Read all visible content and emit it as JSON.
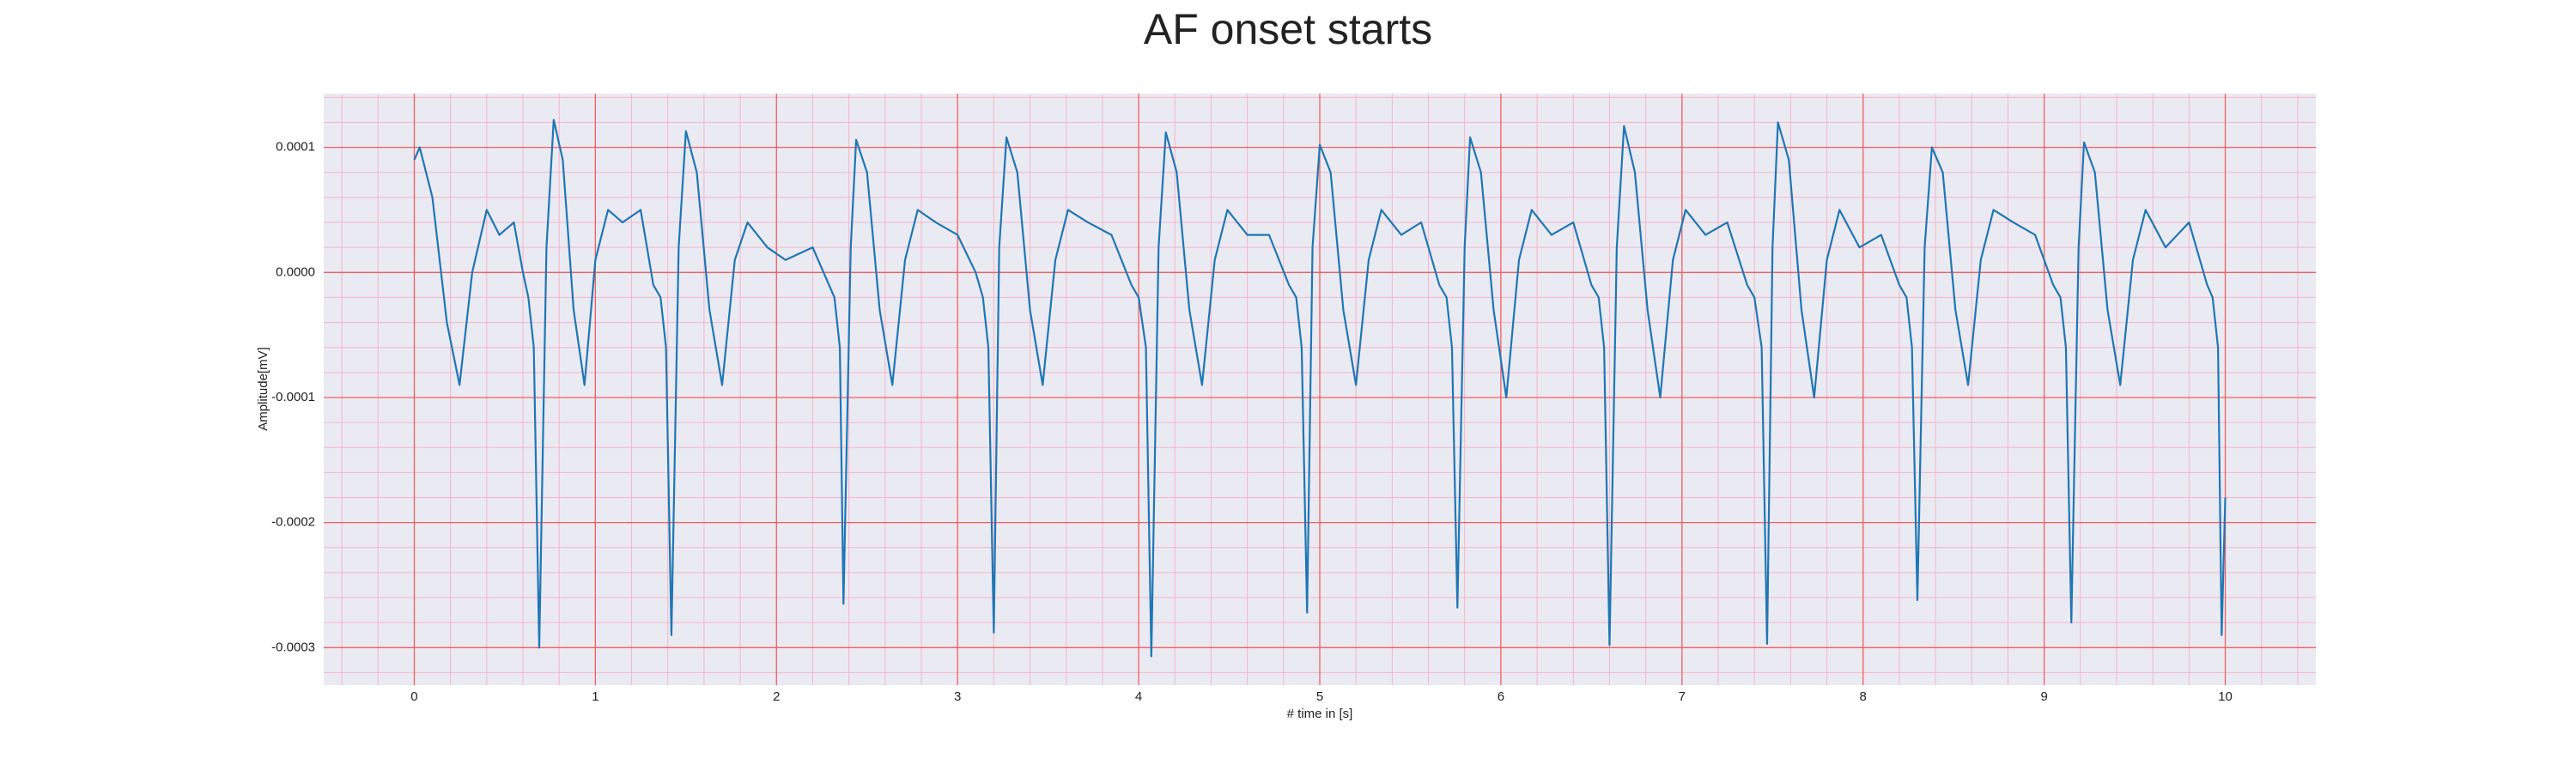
{
  "chart_data": {
    "type": "line",
    "title": "AF onset starts",
    "xlabel": "# time in [s]",
    "ylabel": "Amplitude[mV]",
    "color": "#1f77b4",
    "grid": true,
    "minor_grid": true,
    "xlim": [
      -0.5,
      10.5
    ],
    "ylim": [
      -0.00033,
      0.000143
    ],
    "xticks": [
      0,
      1,
      2,
      3,
      4,
      5,
      6,
      7,
      8,
      9,
      10
    ],
    "yticks": [
      -0.0003,
      -0.0002,
      -0.0001,
      {
        "value": 0,
        "label": "0.0000"
      },
      0.0001
    ],
    "x": [
      0,
      0.03,
      0.1,
      0.18,
      0.25,
      0.32,
      0.4,
      0.47,
      0.55,
      0.6,
      0.63,
      0.66,
      0.69,
      0.73,
      0.77,
      0.82,
      0.88,
      0.94,
      1.0,
      1.07,
      1.15,
      1.25,
      1.32,
      1.36,
      1.39,
      1.42,
      1.46,
      1.5,
      1.56,
      1.63,
      1.7,
      1.77,
      1.84,
      1.95,
      2.05,
      2.2,
      2.29,
      2.32,
      2.35,
      2.37,
      2.41,
      2.44,
      2.5,
      2.57,
      2.64,
      2.71,
      2.78,
      2.88,
      3.0,
      3.1,
      3.14,
      3.17,
      3.2,
      3.23,
      3.27,
      3.33,
      3.4,
      3.47,
      3.54,
      3.61,
      3.72,
      3.85,
      3.96,
      4.0,
      4.04,
      4.07,
      4.11,
      4.15,
      4.21,
      4.28,
      4.35,
      4.42,
      4.49,
      4.6,
      4.72,
      4.83,
      4.87,
      4.9,
      4.93,
      4.96,
      5.0,
      5.06,
      5.13,
      5.2,
      5.27,
      5.34,
      5.45,
      5.56,
      5.66,
      5.7,
      5.73,
      5.76,
      5.8,
      5.83,
      5.89,
      5.96,
      6.03,
      6.1,
      6.17,
      6.28,
      6.4,
      6.5,
      6.54,
      6.57,
      6.6,
      6.64,
      6.68,
      6.74,
      6.81,
      6.88,
      6.95,
      7.02,
      7.13,
      7.25,
      7.36,
      7.4,
      7.44,
      7.47,
      7.5,
      7.53,
      7.59,
      7.66,
      7.73,
      7.8,
      7.87,
      7.98,
      8.1,
      8.2,
      8.24,
      8.27,
      8.3,
      8.34,
      8.38,
      8.44,
      8.51,
      8.58,
      8.65,
      8.72,
      8.83,
      8.95,
      9.05,
      9.09,
      9.12,
      9.15,
      9.19,
      9.22,
      9.28,
      9.35,
      9.42,
      9.49,
      9.56,
      9.67,
      9.8,
      9.9,
      9.93,
      9.96,
      9.98,
      10.0
    ],
    "values": [
      9e-05,
      0.0001,
      6e-05,
      -4e-05,
      -9e-05,
      0.0,
      5e-05,
      3e-05,
      4e-05,
      0.0,
      -2e-05,
      -6e-05,
      -0.0003,
      2e-05,
      0.000122,
      9e-05,
      -3e-05,
      -9e-05,
      1e-05,
      5e-05,
      4e-05,
      5e-05,
      -1e-05,
      -2e-05,
      -6e-05,
      -0.00029,
      2e-05,
      0.000113,
      8e-05,
      -3e-05,
      -9e-05,
      1e-05,
      4e-05,
      2e-05,
      1e-05,
      2e-05,
      -1e-05,
      -2e-05,
      -6e-05,
      -0.000265,
      2e-05,
      0.000106,
      8e-05,
      -3e-05,
      -9e-05,
      1e-05,
      5e-05,
      4e-05,
      3e-05,
      0.0,
      -2e-05,
      -6e-05,
      -0.000288,
      2e-05,
      0.000108,
      8e-05,
      -3e-05,
      -9e-05,
      1e-05,
      5e-05,
      4e-05,
      3e-05,
      -1e-05,
      -2e-05,
      -6e-05,
      -0.000307,
      2e-05,
      0.000112,
      8e-05,
      -3e-05,
      -9e-05,
      1e-05,
      5e-05,
      3e-05,
      3e-05,
      -1e-05,
      -2e-05,
      -6e-05,
      -0.000272,
      2e-05,
      0.000102,
      8e-05,
      -3e-05,
      -9e-05,
      1e-05,
      5e-05,
      3e-05,
      4e-05,
      -1e-05,
      -2e-05,
      -6e-05,
      -0.000268,
      2e-05,
      0.000108,
      8e-05,
      -3e-05,
      -0.0001,
      1e-05,
      5e-05,
      3e-05,
      4e-05,
      -1e-05,
      -2e-05,
      -6e-05,
      -0.000298,
      2e-05,
      0.000117,
      8e-05,
      -3e-05,
      -0.0001,
      1e-05,
      5e-05,
      3e-05,
      4e-05,
      -1e-05,
      -2e-05,
      -6e-05,
      -0.000297,
      2e-05,
      0.00012,
      9e-05,
      -3e-05,
      -0.0001,
      1e-05,
      5e-05,
      2e-05,
      3e-05,
      -1e-05,
      -2e-05,
      -6e-05,
      -0.000262,
      2e-05,
      0.0001,
      8e-05,
      -3e-05,
      -9e-05,
      1e-05,
      5e-05,
      4e-05,
      3e-05,
      -1e-05,
      -2e-05,
      -6e-05,
      -0.00028,
      2e-05,
      0.000104,
      8e-05,
      -3e-05,
      -9e-05,
      1e-05,
      5e-05,
      2e-05,
      4e-05,
      -1e-05,
      -2e-05,
      -6e-05,
      -0.00029,
      -0.00018
    ]
  }
}
